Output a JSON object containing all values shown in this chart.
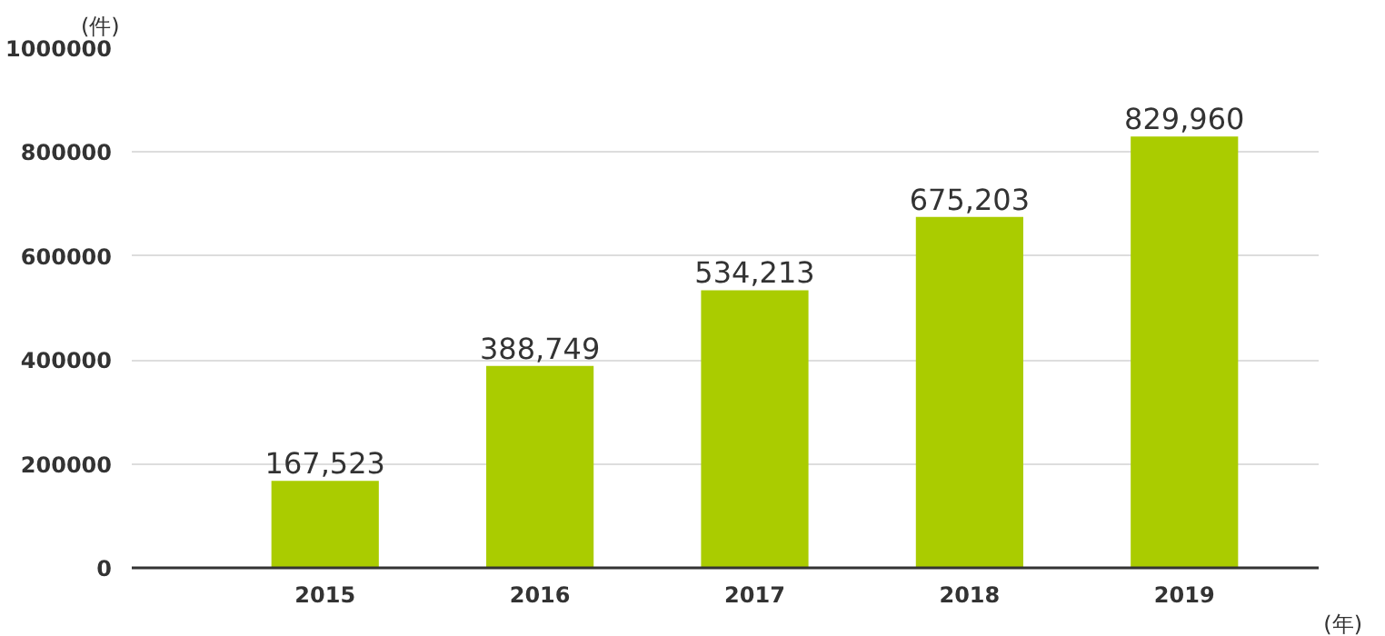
{
  "chart_data": {
    "type": "bar",
    "ylabel": "(件)",
    "xlabel": "(年)",
    "categories": [
      "2015",
      "2016",
      "2017",
      "2018",
      "2019"
    ],
    "values": [
      167523,
      388749,
      534213,
      675203,
      829960
    ],
    "value_labels": [
      "167,523",
      "388,749",
      "534,213",
      "675,203",
      "829,960"
    ],
    "color": "#aacc00",
    "ylim": [
      0,
      1000000
    ],
    "yticks": [
      0,
      200000,
      400000,
      600000,
      800000,
      1000000
    ],
    "grid": "y"
  }
}
